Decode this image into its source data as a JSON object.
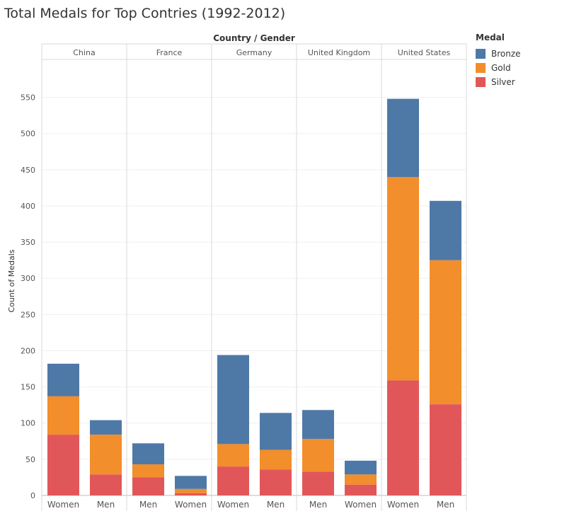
{
  "title": "Total Medals for Top Contries (1992-2012)",
  "chart_data": {
    "type": "bar",
    "stacked": true,
    "header_label": "Country / Gender",
    "ylabel": "Count of Medals",
    "ylim": [
      0,
      575
    ],
    "yticks": [
      0,
      50,
      100,
      150,
      200,
      250,
      300,
      350,
      400,
      450,
      500,
      550
    ],
    "grid": true,
    "legend": {
      "title": "Medal",
      "placement": "top-right",
      "entries": [
        {
          "name": "Bronze",
          "color": "#4e79a7"
        },
        {
          "name": "Gold",
          "color": "#f28e2b"
        },
        {
          "name": "Silver",
          "color": "#e15759"
        }
      ]
    },
    "stack_order": [
      "Silver",
      "Gold",
      "Bronze"
    ],
    "groups": [
      {
        "country": "China",
        "bars": [
          {
            "gender": "Women",
            "Silver": 84,
            "Gold": 53,
            "Bronze": 45
          },
          {
            "gender": "Men",
            "Silver": 29,
            "Gold": 55,
            "Bronze": 20
          }
        ]
      },
      {
        "country": "France",
        "bars": [
          {
            "gender": "Men",
            "Silver": 25,
            "Gold": 18,
            "Bronze": 29
          },
          {
            "gender": "Women",
            "Silver": 3,
            "Gold": 6,
            "Bronze": 18
          }
        ]
      },
      {
        "country": "Germany",
        "bars": [
          {
            "gender": "Women",
            "Silver": 40,
            "Gold": 31,
            "Bronze": 123
          },
          {
            "gender": "Men",
            "Silver": 36,
            "Gold": 27,
            "Bronze": 51
          }
        ]
      },
      {
        "country": "United Kingdom",
        "bars": [
          {
            "gender": "Men",
            "Silver": 33,
            "Gold": 45,
            "Bronze": 40
          },
          {
            "gender": "Women",
            "Silver": 15,
            "Gold": 14,
            "Bronze": 19
          }
        ]
      },
      {
        "country": "United States",
        "bars": [
          {
            "gender": "Women",
            "Silver": 159,
            "Gold": 281,
            "Bronze": 108
          },
          {
            "gender": "Men",
            "Silver": 126,
            "Gold": 199,
            "Bronze": 82
          }
        ]
      }
    ]
  }
}
